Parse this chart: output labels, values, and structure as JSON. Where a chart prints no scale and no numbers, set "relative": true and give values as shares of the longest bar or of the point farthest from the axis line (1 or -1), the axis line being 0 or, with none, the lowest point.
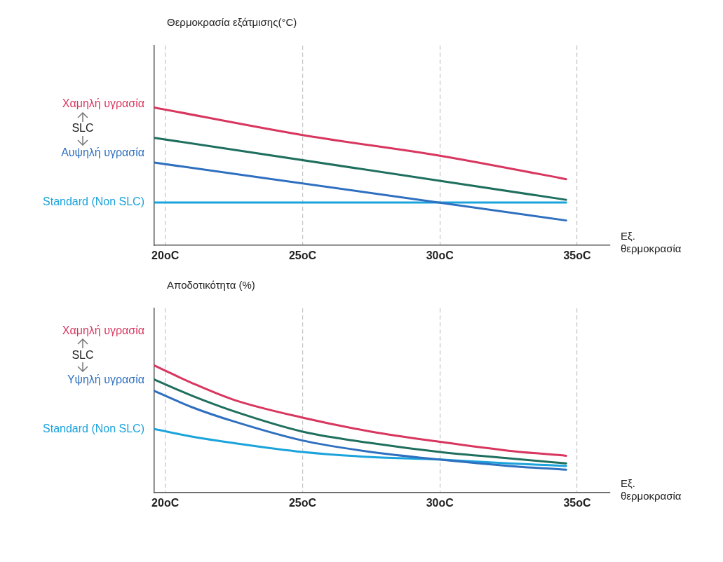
{
  "chart_data": [
    {
      "type": "line",
      "ylabel": "Θερμοκρασία εξάτμισης(°C)",
      "xlabel": "Εξ. θερμοκρασία",
      "relative": true,
      "xlim": [
        19.6,
        36.2
      ],
      "xticks": [
        {
          "value": 20,
          "label": "20oC"
        },
        {
          "value": 25,
          "label": "25oC"
        },
        {
          "value": 30,
          "label": "30oC"
        },
        {
          "value": 35,
          "label": "35oC"
        }
      ],
      "grid": "x",
      "legend": false,
      "marker": "none",
      "annotations": [
        "SLC"
      ],
      "series": [
        {
          "name": "Χαμηλή υγρασία",
          "color": "#d8365f",
          "x": [
            19.6,
            25,
            30,
            34.6
          ],
          "values": [
            1.0,
            0.8,
            0.65,
            0.48
          ]
        },
        {
          "color": "#1f6f5f",
          "x": [
            19.6,
            34.6
          ],
          "values": [
            0.78,
            0.33
          ]
        },
        {
          "name": "Αυψηλή υγρασία",
          "color": "#2e6fbf",
          "x": [
            19.6,
            34.6
          ],
          "values": [
            0.6,
            0.18
          ]
        },
        {
          "name": "Standard (Non SLC)",
          "color": "#1ba3dc",
          "x": [
            19.6,
            34.6
          ],
          "values": [
            0.31,
            0.31
          ]
        }
      ]
    },
    {
      "type": "line",
      "ylabel": "Αποδοτικότητα (%)",
      "xlabel": "Εξ. θερμοκρασία",
      "relative": true,
      "xlim": [
        19.6,
        36.2
      ],
      "xticks": [
        {
          "value": 20,
          "label": "20oC"
        },
        {
          "value": 25,
          "label": "25oC"
        },
        {
          "value": 30,
          "label": "30oC"
        },
        {
          "value": 35,
          "label": "35oC"
        }
      ],
      "grid": "x",
      "legend": false,
      "marker": "none",
      "annotations": [
        "SLC"
      ],
      "series": [
        {
          "name": "Χαμηλή υγρασία",
          "color": "#d8365f",
          "x": [
            19.6,
            21,
            22.5,
            25,
            27.5,
            30,
            32.5,
            34.6
          ],
          "values": [
            1.0,
            0.86,
            0.73,
            0.59,
            0.48,
            0.4,
            0.33,
            0.29
          ]
        },
        {
          "color": "#1f6f5f",
          "x": [
            19.6,
            21,
            22.5,
            25,
            27.5,
            30,
            32.5,
            34.6
          ],
          "values": [
            0.89,
            0.76,
            0.64,
            0.48,
            0.39,
            0.32,
            0.27,
            0.23
          ]
        },
        {
          "name": "Υψηλή υγρασία",
          "color": "#2e6fbf",
          "x": [
            19.6,
            21,
            22.5,
            25,
            27.5,
            30,
            32.5,
            34.6
          ],
          "values": [
            0.8,
            0.67,
            0.56,
            0.41,
            0.32,
            0.26,
            0.21,
            0.18
          ]
        },
        {
          "name": "Standard (Non SLC)",
          "color": "#1ba3dc",
          "x": [
            19.6,
            21,
            22.5,
            25,
            27.5,
            30,
            32.5,
            34.6
          ],
          "values": [
            0.5,
            0.44,
            0.39,
            0.32,
            0.28,
            0.26,
            0.23,
            0.21
          ]
        }
      ]
    }
  ]
}
